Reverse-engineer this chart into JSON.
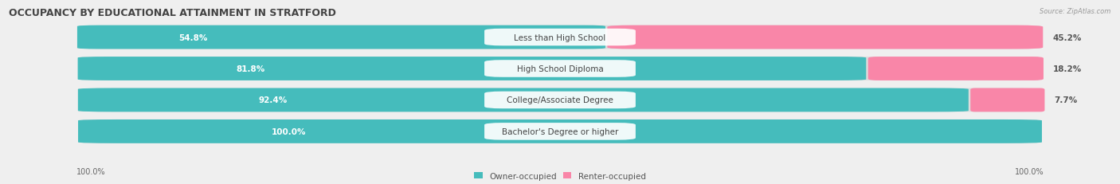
{
  "title": "OCCUPANCY BY EDUCATIONAL ATTAINMENT IN STRATFORD",
  "source": "Source: ZipAtlas.com",
  "categories": [
    "Less than High School",
    "High School Diploma",
    "College/Associate Degree",
    "Bachelor's Degree or higher"
  ],
  "owner_pct": [
    54.8,
    81.8,
    92.4,
    100.0
  ],
  "renter_pct": [
    45.2,
    18.2,
    7.7,
    0.0
  ],
  "owner_color": "#45BCBC",
  "renter_color": "#F986A8",
  "bg_color": "#EFEFEF",
  "bar_bg_color": "#DCDCDC",
  "row_bg_even": "#E8E8E8",
  "row_bg_odd": "#F2F2F2",
  "title_fontsize": 9,
  "label_fontsize": 7.5,
  "cat_fontsize": 7.5,
  "axis_label_fontsize": 7,
  "legend_fontsize": 7.5,
  "figsize": [
    14.06,
    2.32
  ],
  "dpi": 100
}
